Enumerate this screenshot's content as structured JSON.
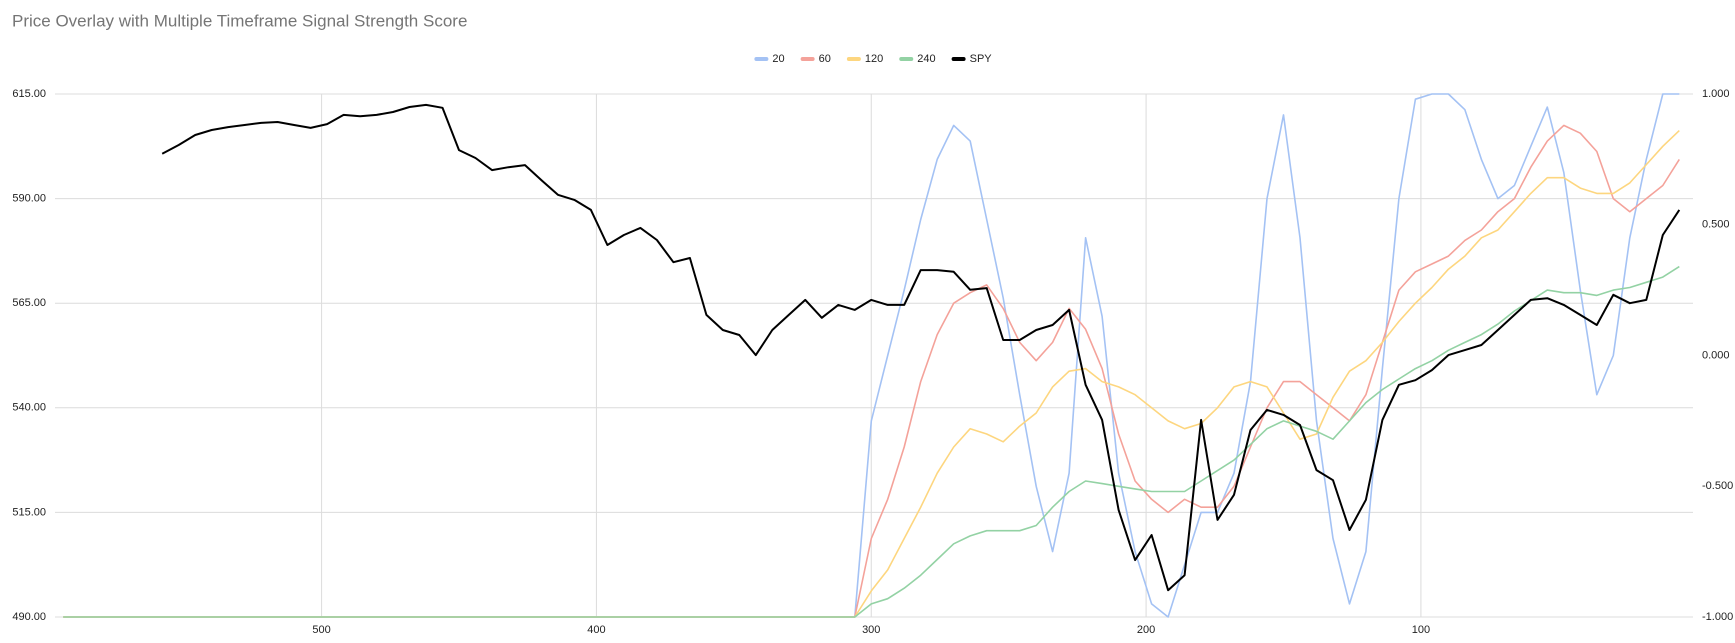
{
  "chart_data": {
    "type": "line",
    "title": "Price Overlay with Multiple Timeframe Signal Strength Score",
    "legend": "top",
    "grid": true,
    "x": [
      594,
      588,
      582,
      576,
      570,
      564,
      558,
      552,
      546,
      540,
      534,
      528,
      522,
      516,
      510,
      504,
      498,
      492,
      486,
      480,
      474,
      468,
      462,
      456,
      450,
      444,
      438,
      432,
      426,
      420,
      414,
      408,
      402,
      396,
      390,
      384,
      378,
      372,
      366,
      360,
      354,
      348,
      342,
      336,
      330,
      324,
      318,
      312,
      306,
      300,
      294,
      288,
      282,
      276,
      270,
      264,
      258,
      252,
      246,
      240,
      234,
      228,
      222,
      216,
      210,
      204,
      198,
      192,
      186,
      180,
      174,
      168,
      162,
      156,
      150,
      144,
      138,
      132,
      126,
      120,
      114,
      108,
      102,
      96,
      90,
      84,
      78,
      72,
      66,
      60,
      54,
      48,
      42,
      36,
      30,
      24,
      18,
      12,
      6
    ],
    "xlim": [
      597,
      1
    ],
    "xticks": [
      500,
      400,
      300,
      200,
      100
    ],
    "ylim": [
      490,
      615
    ],
    "yticks": [
      {
        "value": 490,
        "label": "490.00"
      },
      {
        "value": 515,
        "label": "515.00"
      },
      {
        "value": 540,
        "label": "540.00"
      },
      {
        "value": 565,
        "label": "565.00"
      },
      {
        "value": 590,
        "label": "590.00"
      },
      {
        "value": 615,
        "label": "615.00"
      }
    ],
    "y2lim": [
      -1,
      1
    ],
    "y2ticks": [
      {
        "value": -1,
        "label": "-1.000"
      },
      {
        "value": -0.5,
        "label": "-0.500"
      },
      {
        "value": 0,
        "label": "0.000"
      },
      {
        "value": 0.5,
        "label": "0.500"
      },
      {
        "value": 1,
        "label": "1.000"
      }
    ],
    "series": [
      {
        "name": "20",
        "color": "#a4c2f4",
        "axis": "y2",
        "values": [
          -1,
          -1,
          -1,
          -1,
          -1,
          -1,
          -1,
          -1,
          -1,
          -1,
          -1,
          -1,
          -1,
          -1,
          -1,
          -1,
          -1,
          -1,
          -1,
          -1,
          -1,
          -1,
          -1,
          -1,
          -1,
          -1,
          -1,
          -1,
          -1,
          -1,
          -1,
          -1,
          -1,
          -1,
          -1,
          -1,
          -1,
          -1,
          -1,
          -1,
          -1,
          -1,
          -1,
          -1,
          -1,
          -1,
          -1,
          -1,
          -1,
          -0.25,
          0,
          0.25,
          0.52,
          0.75,
          0.88,
          0.82,
          0.52,
          0.22,
          -0.15,
          -0.5,
          -0.75,
          -0.45,
          0.45,
          0.15,
          -0.45,
          -0.75,
          -0.95,
          -1,
          -0.8,
          -0.6,
          -0.6,
          -0.45,
          -0.1,
          0.6,
          0.92,
          0.45,
          -0.25,
          -0.7,
          -0.95,
          -0.75,
          -0.05,
          0.6,
          0.98,
          1,
          1,
          0.94,
          0.75,
          0.6,
          0.65,
          0.8,
          0.95,
          0.7,
          0.25,
          -0.15,
          0,
          0.45,
          0.75,
          1,
          1
        ]
      },
      {
        "name": "60",
        "color": "#f4a29a",
        "axis": "y2",
        "values": [
          -1,
          -1,
          -1,
          -1,
          -1,
          -1,
          -1,
          -1,
          -1,
          -1,
          -1,
          -1,
          -1,
          -1,
          -1,
          -1,
          -1,
          -1,
          -1,
          -1,
          -1,
          -1,
          -1,
          -1,
          -1,
          -1,
          -1,
          -1,
          -1,
          -1,
          -1,
          -1,
          -1,
          -1,
          -1,
          -1,
          -1,
          -1,
          -1,
          -1,
          -1,
          -1,
          -1,
          -1,
          -1,
          -1,
          -1,
          -1,
          -1,
          -0.7,
          -0.55,
          -0.35,
          -0.1,
          0.08,
          0.2,
          0.24,
          0.27,
          0.18,
          0.05,
          -0.02,
          0.05,
          0.18,
          0.1,
          -0.05,
          -0.3,
          -0.48,
          -0.55,
          -0.6,
          -0.55,
          -0.58,
          -0.58,
          -0.5,
          -0.35,
          -0.2,
          -0.1,
          -0.1,
          -0.15,
          -0.2,
          -0.25,
          -0.15,
          0.05,
          0.25,
          0.32,
          0.35,
          0.38,
          0.44,
          0.48,
          0.55,
          0.6,
          0.72,
          0.82,
          0.88,
          0.85,
          0.78,
          0.6,
          0.55,
          0.6,
          0.65,
          0.75
        ]
      },
      {
        "name": "120",
        "color": "#fdd67f",
        "axis": "y2",
        "values": [
          -1,
          -1,
          -1,
          -1,
          -1,
          -1,
          -1,
          -1,
          -1,
          -1,
          -1,
          -1,
          -1,
          -1,
          -1,
          -1,
          -1,
          -1,
          -1,
          -1,
          -1,
          -1,
          -1,
          -1,
          -1,
          -1,
          -1,
          -1,
          -1,
          -1,
          -1,
          -1,
          -1,
          -1,
          -1,
          -1,
          -1,
          -1,
          -1,
          -1,
          -1,
          -1,
          -1,
          -1,
          -1,
          -1,
          -1,
          -1,
          -1,
          -0.9,
          -0.82,
          -0.7,
          -0.58,
          -0.45,
          -0.35,
          -0.28,
          -0.3,
          -0.33,
          -0.27,
          -0.22,
          -0.12,
          -0.06,
          -0.05,
          -0.1,
          -0.12,
          -0.15,
          -0.2,
          -0.25,
          -0.28,
          -0.26,
          -0.2,
          -0.12,
          -0.1,
          -0.12,
          -0.22,
          -0.32,
          -0.3,
          -0.16,
          -0.06,
          -0.02,
          0.05,
          0.13,
          0.2,
          0.26,
          0.33,
          0.38,
          0.45,
          0.48,
          0.55,
          0.62,
          0.68,
          0.68,
          0.64,
          0.62,
          0.62,
          0.66,
          0.73,
          0.8,
          0.86
        ]
      },
      {
        "name": "240",
        "color": "#93d2a4",
        "axis": "y2",
        "values": [
          -1,
          -1,
          -1,
          -1,
          -1,
          -1,
          -1,
          -1,
          -1,
          -1,
          -1,
          -1,
          -1,
          -1,
          -1,
          -1,
          -1,
          -1,
          -1,
          -1,
          -1,
          -1,
          -1,
          -1,
          -1,
          -1,
          -1,
          -1,
          -1,
          -1,
          -1,
          -1,
          -1,
          -1,
          -1,
          -1,
          -1,
          -1,
          -1,
          -1,
          -1,
          -1,
          -1,
          -1,
          -1,
          -1,
          -1,
          -1,
          -1,
          -0.95,
          -0.93,
          -0.89,
          -0.84,
          -0.78,
          -0.72,
          -0.69,
          -0.67,
          -0.67,
          -0.67,
          -0.65,
          -0.58,
          -0.52,
          -0.48,
          -0.49,
          -0.5,
          -0.51,
          -0.52,
          -0.52,
          -0.52,
          -0.48,
          -0.44,
          -0.4,
          -0.34,
          -0.28,
          -0.25,
          -0.27,
          -0.29,
          -0.32,
          -0.25,
          -0.18,
          -0.13,
          -0.09,
          -0.05,
          -0.02,
          0.02,
          0.05,
          0.08,
          0.12,
          0.17,
          0.21,
          0.25,
          0.24,
          0.24,
          0.23,
          0.25,
          0.26,
          0.28,
          0.3,
          0.34
        ]
      },
      {
        "name": "SPY",
        "color": "#000000",
        "values": [
          null,
          null,
          null,
          null,
          null,
          null,
          600.7,
          602.8,
          605.2,
          606.4,
          607.1,
          607.6,
          608.1,
          608.3,
          607.6,
          606.9,
          607.8,
          610,
          609.7,
          610,
          610.7,
          611.9,
          612.4,
          611.7,
          601.6,
          599.7,
          596.8,
          597.5,
          598,
          594.4,
          590.9,
          589.7,
          587.3,
          578.9,
          581.3,
          583,
          580.1,
          574.8,
          575.8,
          562.2,
          558.6,
          557.4,
          552.6,
          558.6,
          562.2,
          565.8,
          561.5,
          564.6,
          563.4,
          565.8,
          564.6,
          564.6,
          572.9,
          572.9,
          572.5,
          568.2,
          568.6,
          556.2,
          556.2,
          558.6,
          559.8,
          563.4,
          545.5,
          537.1,
          515.6,
          503.6,
          509.6,
          496.4,
          500,
          537.1,
          513.2,
          519.2,
          534.7,
          539.5,
          538.3,
          535.9,
          525.1,
          522.7,
          510.8,
          518,
          537.1,
          545.5,
          546.6,
          549,
          552.6,
          553.8,
          555,
          558.6,
          562.2,
          565.8,
          566.2,
          564.6,
          562.2,
          559.8,
          567,
          565,
          565.8,
          581.3,
          587.3
        ]
      }
    ]
  }
}
